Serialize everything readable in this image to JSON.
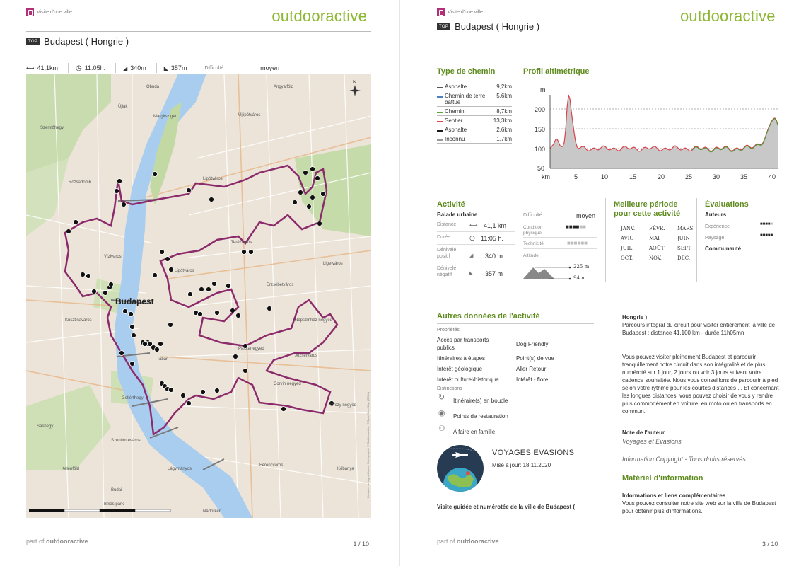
{
  "brand": "outdooractive",
  "category": "Visite d'une ville",
  "top_badge": "TOP",
  "title": "Budapest ( Hongrie )",
  "left_page": {
    "stats": {
      "distance": "41,1km",
      "duration": "11:05h.",
      "ascent": "340m",
      "descent": "357m",
      "difficulty_label": "Difficulté",
      "difficulty_value": "moyen"
    },
    "map_labels": [
      "Budapest",
      "Terézváros",
      "Erzsébetváros",
      "Józsefváros",
      "Ferencváros",
      "Lipótváros",
      "Újlipótváros",
      "Rózsadomb",
      "Szemlőhegy",
      "Újlak",
      "Óbuda",
      "Vízivaros",
      "Tabán",
      "Krisztinaváros",
      "Gellérthegy",
      "Lágymányos",
      "Sashegy",
      "Szentimreváros",
      "Kelenföld",
      "Margitsziget",
      "Lipótváros",
      "Angyalföld",
      "Népszínház negyed",
      "Palotanegyed",
      "Orczy negyed",
      "Corvin negyed",
      "Ligetváros",
      "Budai",
      "Nádorkert",
      "Bikás park",
      "Kőbánya"
    ],
    "map_copyright": "Données cartographiques: Cartographie © Outdooractive; © OpenStreetMap (ODbL)",
    "footer_part": "part of",
    "footer_brand": "outdooractive",
    "page_number": "1 / 10"
  },
  "right_page": {
    "type_chemin": {
      "heading": "Type de chemin",
      "rows": [
        {
          "name": "Asphalte",
          "value": "9,2km",
          "color": "#555555"
        },
        {
          "name": "Chemin de terre battue",
          "value": "5,6km",
          "color": "#4a7fc1"
        },
        {
          "name": "Chemin",
          "value": "8,7km",
          "color": "#5aa83a"
        },
        {
          "name": "Sentier",
          "value": "13,3km",
          "color": "#e0484e"
        },
        {
          "name": "Asphalte",
          "value": "2,6km",
          "color": "#1a1a1a"
        },
        {
          "name": "Inconnu",
          "value": "1,7km",
          "color": "#999999"
        }
      ]
    },
    "profile": {
      "heading": "Profil altimétrique",
      "y_unit": "m",
      "x_unit": "km",
      "y_ticks": [
        "200",
        "150",
        "100",
        "50"
      ],
      "x_ticks": [
        "5",
        "10",
        "15",
        "20",
        "25",
        "30",
        "35",
        "40"
      ]
    },
    "activite": {
      "heading": "Activité",
      "subheading": "Balade urbaine",
      "rows": [
        {
          "label": "Distance",
          "value": "41,1 km"
        },
        {
          "label": "Durée",
          "value": "11:05 h."
        },
        {
          "label": "Dénivelé positif",
          "value": "340 m"
        },
        {
          "label": "Dénivelé négatif",
          "value": "357 m"
        }
      ],
      "difficulte_label": "Difficulté",
      "difficulte_value": "moyen",
      "condition_label": "Condition physique",
      "technicite_label": "Technicité",
      "altitude_label": "Altitude",
      "alt_max": "225 m",
      "alt_min": "94 m"
    },
    "periode": {
      "heading1": "Meilleure période",
      "heading2": "pour cette activité",
      "months": [
        [
          "JANV.",
          "FÉVR.",
          "MARS"
        ],
        [
          "AVR.",
          "MAI",
          "JUIN"
        ],
        [
          "JUIL.",
          "AOÛT",
          "SEPT."
        ],
        [
          "OCT.",
          "NOV.",
          "DÉC."
        ]
      ]
    },
    "evaluations": {
      "heading": "Évaluations",
      "auteurs": "Auteurs",
      "experience": "Expérience",
      "paysage": "Paysage",
      "communaute": "Communauté"
    },
    "autres": {
      "heading": "Autres données de l'activité",
      "proprietes": "Propriétés",
      "col1": [
        "Accès par transports publics",
        "Itinéraires à étapes",
        "Intérêt géologique",
        "Intérêt culturel/historique"
      ],
      "col2": [
        "Dog Friendly",
        "Point(s) de vue",
        "Aller Retour",
        "Intérêt - flore"
      ],
      "distinctions": "Distinctions",
      "distinction_items": [
        "Itinéraire(s) en boucle",
        "Points de restauration",
        "A faire en famille"
      ]
    },
    "author": {
      "name": "VOYAGES EVASIONS",
      "updated": "Mise à jour: 18.11.2020",
      "caption": "Visite guidée et numérotée de la ville de Budapest ("
    },
    "description": {
      "title": "Hongrie )",
      "para1": "Parcours intégral du circuit pour visiter entièrement la ville de Budapest : distance 41,100 km - durée 11h05mn",
      "para2": "Vous pouvez visiter pleinement Budapest et parcourir tranquillement notre circuit dans son intégralité et de plus numéroté sur 1 jour, 2 jours ou voir 3 jours suivant votre cadence souhaitée. Nous vous conseillons de parcourir à pied selon votre rythme pour les courtes distances ... Et concernant les longues distances, vous pouvez choisir de vous y rendre plus commodément en voiture, en moto ou en transports en commun.",
      "note_heading": "Note de l'auteur",
      "note_author": "Voyages et Evasions",
      "copyright": "Information Copyright - Tous droits réservés.",
      "materiel_heading": "Matériel d'information",
      "info_heading": "Informations et liens complémentaires",
      "info_text": "Vous pouvez consulter notre site web sur la ville de Budapest pour obtenir plus d'informations."
    },
    "footer_part": "part of",
    "footer_brand": "outdooractive",
    "page_number": "3 / 10"
  }
}
